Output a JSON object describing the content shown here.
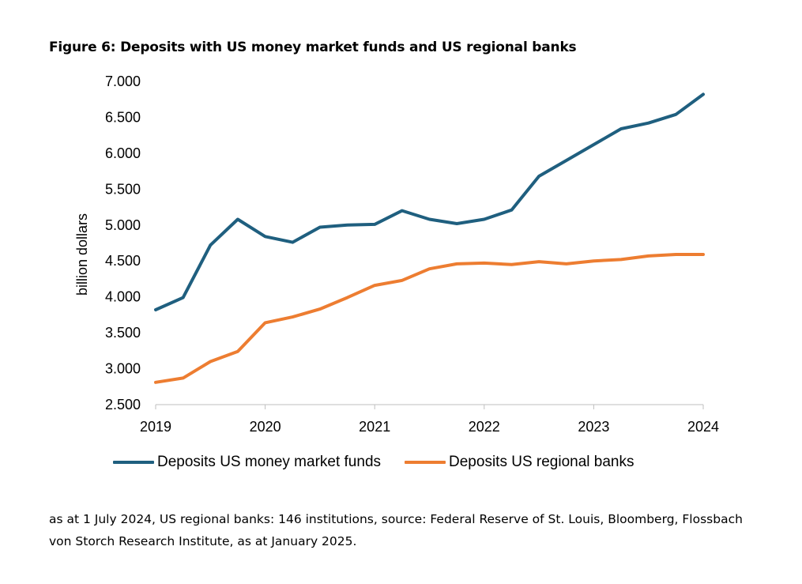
{
  "title": "Figure 6: Deposits with US money market funds and US regional banks",
  "footnote": "as at 1 July 2024, US regional banks: 146 institutions, source: Federal Reserve of St. Louis, Bloomberg, Flossbach von Storch Research Institute, as at January 2025.",
  "chart_data": {
    "type": "line",
    "title": "Figure 6: Deposits with US money market funds and US regional banks",
    "xlabel": "",
    "ylabel": "billion dollars",
    "xlim": [
      2019,
      2024
    ],
    "ylim": [
      2500,
      7000
    ],
    "x_ticks": [
      2019,
      2020,
      2021,
      2022,
      2023,
      2024
    ],
    "x_tick_labels": [
      "2019",
      "2020",
      "2021",
      "2022",
      "2023",
      "2024"
    ],
    "y_ticks": [
      2500,
      3000,
      3500,
      4000,
      4500,
      5000,
      5500,
      6000,
      6500,
      7000
    ],
    "y_tick_labels": [
      "2.500",
      "3.000",
      "3.500",
      "4.000",
      "4.500",
      "5.000",
      "5.500",
      "6.000",
      "6.500",
      "7.000"
    ],
    "legend_position": "bottom",
    "series": [
      {
        "name": "Deposits US money market funds",
        "color": "#1f5f7f",
        "x": [
          2019.0,
          2019.25,
          2019.5,
          2019.75,
          2020.0,
          2020.25,
          2020.5,
          2020.75,
          2021.0,
          2021.25,
          2021.5,
          2021.75,
          2022.0,
          2022.25,
          2022.5,
          2022.75,
          2023.0,
          2023.25,
          2023.5,
          2023.75,
          2024.0
        ],
        "values": [
          3820,
          3990,
          4720,
          5080,
          4840,
          4760,
          4970,
          5000,
          5010,
          5200,
          5080,
          5020,
          5080,
          5210,
          5680,
          5900,
          6120,
          6340,
          6420,
          6540,
          6820
        ]
      },
      {
        "name": "Deposits US regional banks",
        "color": "#ed7d31",
        "x": [
          2019.0,
          2019.25,
          2019.5,
          2019.75,
          2020.0,
          2020.25,
          2020.5,
          2020.75,
          2021.0,
          2021.25,
          2021.5,
          2021.75,
          2022.0,
          2022.25,
          2022.5,
          2022.75,
          2023.0,
          2023.25,
          2023.5,
          2023.75,
          2024.0
        ],
        "values": [
          2810,
          2870,
          3100,
          3240,
          3640,
          3720,
          3830,
          3990,
          4160,
          4230,
          4390,
          4460,
          4470,
          4450,
          4490,
          4460,
          4500,
          4520,
          4570,
          4590,
          4590
        ]
      }
    ]
  }
}
